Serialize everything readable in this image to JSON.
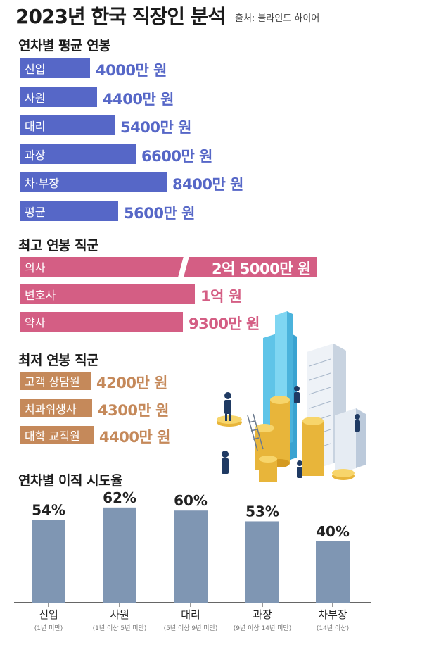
{
  "header": {
    "title": "2023년 한국 직장인 분석",
    "source": "출처: 블라인드 하이어"
  },
  "sections": {
    "salary_by_year": "연차별 평균 연봉",
    "highest": "최고 연봉 직군",
    "lowest": "최저 연봉 직군",
    "turnover": "연차별 이직 시도율"
  },
  "colors": {
    "blue": "#5667c7",
    "pink": "#d45e84",
    "tan": "#c5895a",
    "column": "#7f96b3"
  },
  "chart_data": [
    {
      "type": "bar",
      "orientation": "horizontal",
      "title": "연차별 평균 연봉",
      "unit": "만 원",
      "categories": [
        "신입",
        "사원",
        "대리",
        "과장",
        "차·부장",
        "평균"
      ],
      "values": [
        4000,
        4400,
        5400,
        6600,
        8400,
        5600
      ],
      "labels": [
        "4000만 원",
        "4400만 원",
        "5400만 원",
        "6600만 원",
        "8400만 원",
        "5600만 원"
      ]
    },
    {
      "type": "bar",
      "orientation": "horizontal",
      "title": "최고 연봉 직군",
      "unit": "만 원",
      "categories": [
        "의사",
        "변호사",
        "약사"
      ],
      "values": [
        25000,
        10000,
        9300
      ],
      "labels": [
        "2억 5000만 원",
        "1억 원",
        "9300만 원"
      ],
      "axis_break": "의사"
    },
    {
      "type": "bar",
      "orientation": "horizontal",
      "title": "최저 연봉 직군",
      "unit": "만 원",
      "categories": [
        "고객 상담원",
        "치과위생사",
        "대학 교직원"
      ],
      "values": [
        4200,
        4300,
        4400
      ],
      "labels": [
        "4200만 원",
        "4300만 원",
        "4400만 원"
      ]
    },
    {
      "type": "bar",
      "orientation": "vertical",
      "title": "연차별 이직 시도율",
      "unit": "%",
      "categories": [
        "신입",
        "사원",
        "대리",
        "과장",
        "차부장"
      ],
      "sublabels": [
        "(1년 미만)",
        "(1년 이상 5년 미만)",
        "(5년 이상 9년 미만)",
        "(9년 이상 14년 미만)",
        "(14년 이상)"
      ],
      "values": [
        54,
        62,
        60,
        53,
        40
      ],
      "labels": [
        "54%",
        "62%",
        "60%",
        "53%",
        "40%"
      ]
    }
  ]
}
